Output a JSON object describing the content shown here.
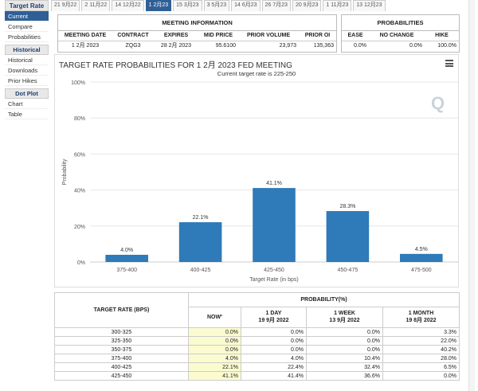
{
  "sidebar": {
    "title": "Target Rate",
    "items": [
      "Current",
      "Compare",
      "Probabilities"
    ],
    "historical_title": "Historical",
    "historical_items": [
      "Historical",
      "Downloads",
      "Prior Hikes"
    ],
    "dotplot_title": "Dot Plot",
    "dotplot_items": [
      "Chart",
      "Table"
    ]
  },
  "tabs": [
    "21 9月22",
    "2 11月22",
    "14 12月22",
    "1 2月23",
    "15 3月23",
    "3 5月23",
    "14 6月23",
    "26 7月23",
    "20 9月23",
    "1 11月23",
    "13 12月23"
  ],
  "active_tab": 3,
  "meeting": {
    "title": "MEETING INFORMATION",
    "headers": [
      "MEETING DATE",
      "CONTRACT",
      "EXPIRES",
      "MID PRICE",
      "PRIOR VOLUME",
      "PRIOR OI"
    ],
    "values": [
      "1 2月 2023",
      "ZQG3",
      "28 2月 2023",
      "95.6100",
      "23,973",
      "135,363"
    ]
  },
  "probabilities": {
    "title": "PROBABILITIES",
    "headers": [
      "EASE",
      "NO CHANGE",
      "HIKE"
    ],
    "values": [
      "0.0%",
      "0.0%",
      "100.0%"
    ]
  },
  "chart": {
    "watermark": "Q"
  },
  "chart_data": {
    "type": "bar",
    "title": "TARGET RATE PROBABILITIES FOR 1 2月 2023 FED MEETING",
    "subtitle": "Current target rate is 225-250",
    "xlabel": "Target Rate (in bps)",
    "ylabel": "Probability",
    "categories": [
      "375-400",
      "400-425",
      "425-450",
      "450-475",
      "475-500"
    ],
    "values": [
      4.0,
      22.1,
      41.1,
      28.3,
      4.5
    ],
    "value_labels": [
      "4.0%",
      "22.1%",
      "41.1%",
      "28.3%",
      "4.5%"
    ],
    "yticks": [
      "0%",
      "20%",
      "40%",
      "60%",
      "80%",
      "100%"
    ],
    "ylim": [
      0,
      100
    ],
    "bar_color": "#2f7ab8"
  },
  "table": {
    "rate_header": "TARGET RATE (BPS)",
    "prob_header": "PROBABILITY(%)",
    "now_label": "NOW",
    "now_mark": "*",
    "cols": [
      {
        "line1": "1 DAY",
        "line2": "19 9月 2022"
      },
      {
        "line1": "1 WEEK",
        "line2": "13 9月 2022"
      },
      {
        "line1": "1 MONTH",
        "line2": "19 8月 2022"
      }
    ],
    "rows": [
      {
        "rate": "300-325",
        "now": "0.0%",
        "d1": "0.0%",
        "w1": "0.0%",
        "m1": "3.3%"
      },
      {
        "rate": "325-350",
        "now": "0.0%",
        "d1": "0.0%",
        "w1": "0.0%",
        "m1": "22.0%"
      },
      {
        "rate": "350-375",
        "now": "0.0%",
        "d1": "0.0%",
        "w1": "0.0%",
        "m1": "40.2%"
      },
      {
        "rate": "375-400",
        "now": "4.0%",
        "d1": "4.0%",
        "w1": "10.4%",
        "m1": "28.0%"
      },
      {
        "rate": "400-425",
        "now": "22.1%",
        "d1": "22.4%",
        "w1": "32.4%",
        "m1": "6.5%"
      },
      {
        "rate": "425-450",
        "now": "41.1%",
        "d1": "41.4%",
        "w1": "36.6%",
        "m1": "0.0%"
      }
    ]
  }
}
